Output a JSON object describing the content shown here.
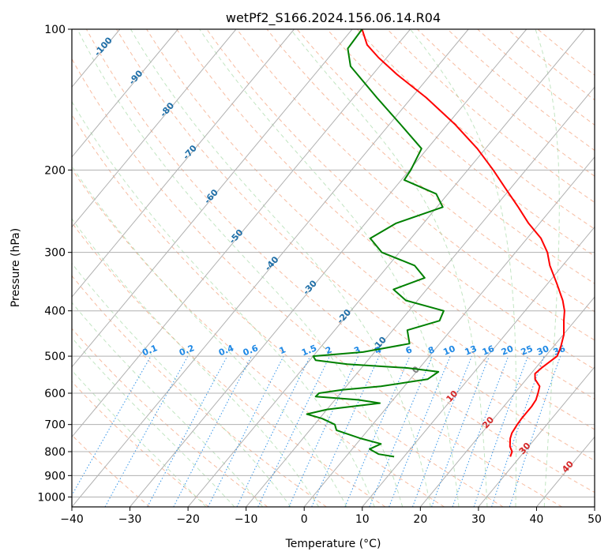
{
  "chart_data": {
    "type": "line",
    "subtype": "skew-t log-p diagram",
    "title": "wetPf2_S166.2024.156.06.14.R04",
    "xlabel": "Temperature (°C)",
    "ylabel": "Pressure (hPa)",
    "xlim": [
      -40,
      50
    ],
    "ylim": [
      1050,
      100
    ],
    "y_scale": "log",
    "x_ticks": [
      -40,
      -30,
      -20,
      -10,
      0,
      10,
      20,
      30,
      40,
      50
    ],
    "x_tick_labels": [
      "−40",
      "−30",
      "−20",
      "−10",
      "0",
      "10",
      "20",
      "30",
      "40",
      "50"
    ],
    "y_ticks": [
      100,
      200,
      300,
      400,
      500,
      600,
      700,
      800,
      900,
      1000
    ],
    "y_tick_labels": [
      "100",
      "200",
      "300",
      "400",
      "500",
      "600",
      "700",
      "800",
      "900",
      "1000"
    ],
    "grid": true,
    "isotherm_labels": [
      "-100",
      "-90",
      "-80",
      "-70",
      "-60",
      "-50",
      "-40",
      "-30",
      "-20",
      "-10",
      "0",
      "10",
      "20",
      "30",
      "40"
    ],
    "mixing_ratio_labels": [
      "0.1",
      "0.2",
      "0.4",
      "0.6",
      "1",
      "1.5",
      "2",
      "3",
      "4",
      "6",
      "8",
      "10",
      "13",
      "16",
      "20",
      "25",
      "30",
      "36"
    ],
    "series": [
      {
        "role": "temperature",
        "color": "#ff0000",
        "points": [
          {
            "p": 820,
            "t": 28.3
          },
          {
            "p": 800,
            "t": 27.9
          },
          {
            "p": 780,
            "t": 26.8
          },
          {
            "p": 750,
            "t": 25.7
          },
          {
            "p": 730,
            "t": 25.2
          },
          {
            "p": 700,
            "t": 24.9
          },
          {
            "p": 680,
            "t": 24.8
          },
          {
            "p": 660,
            "t": 24.8
          },
          {
            "p": 640,
            "t": 24.8
          },
          {
            "p": 620,
            "t": 24.6
          },
          {
            "p": 600,
            "t": 24.0
          },
          {
            "p": 580,
            "t": 23.3
          },
          {
            "p": 560,
            "t": 21.5
          },
          {
            "p": 545,
            "t": 20.7
          },
          {
            "p": 530,
            "t": 21.0
          },
          {
            "p": 500,
            "t": 22.0
          },
          {
            "p": 480,
            "t": 21.4
          },
          {
            "p": 450,
            "t": 20.1
          },
          {
            "p": 420,
            "t": 18.1
          },
          {
            "p": 400,
            "t": 16.8
          },
          {
            "p": 380,
            "t": 15.0
          },
          {
            "p": 350,
            "t": 11.6
          },
          {
            "p": 320,
            "t": 7.8
          },
          {
            "p": 300,
            "t": 5.5
          },
          {
            "p": 280,
            "t": 2.4
          },
          {
            "p": 260,
            "t": -1.9
          },
          {
            "p": 240,
            "t": -6.0
          },
          {
            "p": 220,
            "t": -10.6
          },
          {
            "p": 200,
            "t": -15.6
          },
          {
            "p": 180,
            "t": -21.4
          },
          {
            "p": 160,
            "t": -28.6
          },
          {
            "p": 140,
            "t": -37.5
          },
          {
            "p": 125,
            "t": -45.8
          },
          {
            "p": 115,
            "t": -51.4
          },
          {
            "p": 108,
            "t": -55.2
          },
          {
            "p": 100,
            "t": -58.3
          }
        ]
      },
      {
        "role": "dewpoint",
        "color": "#008000",
        "points": [
          {
            "p": 820,
            "t": 8.3
          },
          {
            "p": 810,
            "t": 5.3
          },
          {
            "p": 790,
            "t": 3.0
          },
          {
            "p": 770,
            "t": 4.2
          },
          {
            "p": 750,
            "t": 0.0
          },
          {
            "p": 720,
            "t": -5.4
          },
          {
            "p": 700,
            "t": -6.5
          },
          {
            "p": 680,
            "t": -9.5
          },
          {
            "p": 665,
            "t": -12.8
          },
          {
            "p": 650,
            "t": -10.0
          },
          {
            "p": 630,
            "t": -1.8
          },
          {
            "p": 620,
            "t": -6.0
          },
          {
            "p": 610,
            "t": -13.8
          },
          {
            "p": 600,
            "t": -13.7
          },
          {
            "p": 590,
            "t": -10.2
          },
          {
            "p": 580,
            "t": -4.0
          },
          {
            "p": 560,
            "t": 3.0
          },
          {
            "p": 540,
            "t": 3.8
          },
          {
            "p": 530,
            "t": -2.0
          },
          {
            "p": 520,
            "t": -13.0
          },
          {
            "p": 510,
            "t": -19.0
          },
          {
            "p": 500,
            "t": -20.0
          },
          {
            "p": 490,
            "t": -12.0
          },
          {
            "p": 470,
            "t": -5.2
          },
          {
            "p": 440,
            "t": -7.5
          },
          {
            "p": 420,
            "t": -3.3
          },
          {
            "p": 400,
            "t": -4.0
          },
          {
            "p": 380,
            "t": -12.0
          },
          {
            "p": 360,
            "t": -15.7
          },
          {
            "p": 340,
            "t": -12.0
          },
          {
            "p": 320,
            "t": -15.5
          },
          {
            "p": 300,
            "t": -23.0
          },
          {
            "p": 280,
            "t": -27.0
          },
          {
            "p": 260,
            "t": -24.7
          },
          {
            "p": 240,
            "t": -19.0
          },
          {
            "p": 225,
            "t": -22.0
          },
          {
            "p": 210,
            "t": -29.5
          },
          {
            "p": 200,
            "t": -29.8
          },
          {
            "p": 180,
            "t": -31.0
          },
          {
            "p": 160,
            "t": -38.0
          },
          {
            "p": 140,
            "t": -46.0
          },
          {
            "p": 120,
            "t": -55.0
          },
          {
            "p": 110,
            "t": -58.0
          },
          {
            "p": 100,
            "t": -58.3
          }
        ]
      }
    ]
  }
}
